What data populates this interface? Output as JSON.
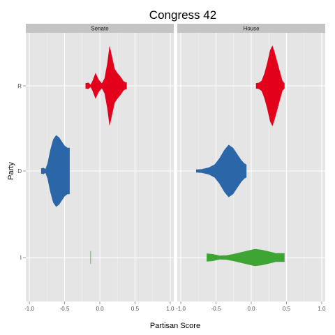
{
  "chart_data": {
    "type": "violin",
    "title": "Congress 42",
    "xlabel": "Partisan Score",
    "ylabel": "Party",
    "xlim": [
      -1.05,
      1.05
    ],
    "x_ticks": [
      -1.0,
      -0.5,
      0.0,
      0.5,
      1.0
    ],
    "x_tick_labels": [
      "-1.0",
      "-0.5",
      "0.0",
      "0.5",
      "1.0"
    ],
    "parties": [
      "R",
      "D",
      "I"
    ],
    "grid": true,
    "legend": "none",
    "colors": {
      "R": "#e3001a",
      "D": "#2a66a8",
      "I": "#3ea535"
    },
    "panels": [
      {
        "label": "Senate",
        "violins": [
          {
            "party": "R",
            "min": -0.2,
            "max": 0.38,
            "profile": [
              [
                -0.2,
                0.06
              ],
              [
                -0.16,
                0.07
              ],
              [
                -0.13,
                0.02
              ],
              [
                -0.1,
                0.12
              ],
              [
                -0.06,
                0.3
              ],
              [
                -0.02,
                0.15
              ],
              [
                0.03,
                0.05
              ],
              [
                0.07,
                0.18
              ],
              [
                0.11,
                0.55
              ],
              [
                0.14,
                0.94
              ],
              [
                0.17,
                0.7
              ],
              [
                0.21,
                0.4
              ],
              [
                0.25,
                0.3
              ],
              [
                0.29,
                0.22
              ],
              [
                0.33,
                0.12
              ],
              [
                0.36,
                0.08
              ],
              [
                0.38,
                0.08
              ]
            ]
          },
          {
            "party": "D",
            "min": -0.83,
            "max": -0.43,
            "profile": [
              [
                -0.83,
                0.06
              ],
              [
                -0.8,
                0.07
              ],
              [
                -0.77,
                0.04
              ],
              [
                -0.74,
                0.18
              ],
              [
                -0.7,
                0.5
              ],
              [
                -0.66,
                0.75
              ],
              [
                -0.62,
                0.85
              ],
              [
                -0.58,
                0.8
              ],
              [
                -0.54,
                0.7
              ],
              [
                -0.5,
                0.6
              ],
              [
                -0.46,
                0.55
              ],
              [
                -0.43,
                0.55
              ]
            ]
          },
          {
            "party": "I",
            "min": -0.13,
            "max": -0.13,
            "profile": [
              [
                -0.131,
                0.15
              ],
              [
                -0.129,
                0.15
              ]
            ]
          }
        ]
      },
      {
        "label": "House",
        "violins": [
          {
            "party": "R",
            "min": 0.07,
            "max": 0.47,
            "profile": [
              [
                0.07,
                0.06
              ],
              [
                0.11,
                0.07
              ],
              [
                0.15,
                0.12
              ],
              [
                0.19,
                0.3
              ],
              [
                0.23,
                0.55
              ],
              [
                0.27,
                0.85
              ],
              [
                0.3,
                0.95
              ],
              [
                0.33,
                0.8
              ],
              [
                0.37,
                0.55
              ],
              [
                0.41,
                0.3
              ],
              [
                0.44,
                0.12
              ],
              [
                0.47,
                0.06
              ]
            ]
          },
          {
            "party": "D",
            "min": -0.78,
            "max": -0.07,
            "profile": [
              [
                -0.78,
                0.03
              ],
              [
                -0.7,
                0.04
              ],
              [
                -0.6,
                0.08
              ],
              [
                -0.52,
                0.15
              ],
              [
                -0.45,
                0.3
              ],
              [
                -0.38,
                0.5
              ],
              [
                -0.32,
                0.62
              ],
              [
                -0.26,
                0.55
              ],
              [
                -0.2,
                0.4
              ],
              [
                -0.14,
                0.25
              ],
              [
                -0.1,
                0.18
              ],
              [
                -0.07,
                0.15
              ]
            ]
          },
          {
            "party": "I",
            "min": -0.63,
            "max": 0.47,
            "profile": [
              [
                -0.63,
                0.09
              ],
              [
                -0.55,
                0.08
              ],
              [
                -0.45,
                0.04
              ],
              [
                -0.35,
                0.05
              ],
              [
                -0.25,
                0.08
              ],
              [
                -0.15,
                0.12
              ],
              [
                -0.05,
                0.16
              ],
              [
                0.05,
                0.2
              ],
              [
                0.15,
                0.18
              ],
              [
                0.25,
                0.14
              ],
              [
                0.35,
                0.1
              ],
              [
                0.45,
                0.1
              ],
              [
                0.47,
                0.1
              ]
            ]
          }
        ]
      }
    ]
  }
}
